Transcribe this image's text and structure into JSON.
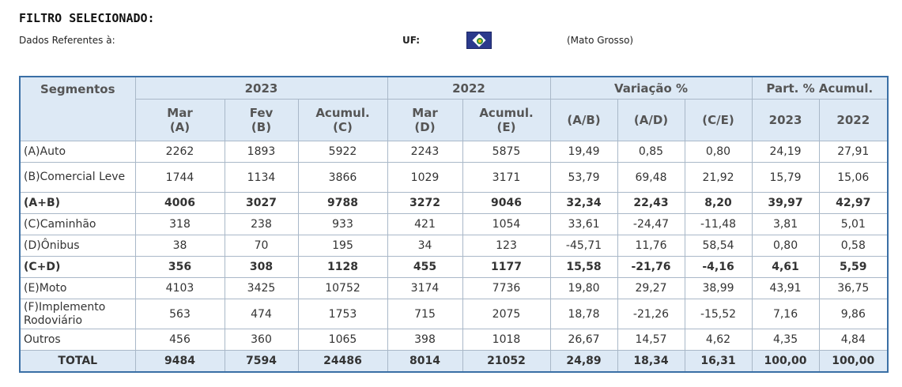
{
  "header": {
    "title": "FILTRO SELECIONADO:",
    "dados_label": "Dados Referentes à:",
    "uf_label": "UF:",
    "uf_name": "(Mato Grosso)",
    "flag_icon": "mato-grosso-flag-icon"
  },
  "table": {
    "segment_header": "Segmentos",
    "group_headers": [
      "2023",
      "2022",
      "Variação %",
      "Part. % Acumul."
    ],
    "sub_headers": [
      "Mar\n(A)",
      "Fev\n(B)",
      "Acumul.\n(C)",
      "Mar\n(D)",
      "Acumul.\n(E)",
      "(A/B)",
      "(A/D)",
      "(C/E)",
      "2023",
      "2022"
    ],
    "rows": [
      {
        "segment": "(A)Auto",
        "bold": false,
        "values": [
          "2262",
          "1893",
          "5922",
          "2243",
          "5875",
          "19,49",
          "0,85",
          "0,80",
          "24,19",
          "27,91"
        ]
      },
      {
        "segment": "(B)Comercial Leve",
        "bold": false,
        "values": [
          "1744",
          "1134",
          "3866",
          "1029",
          "3171",
          "53,79",
          "69,48",
          "21,92",
          "15,79",
          "15,06"
        ]
      },
      {
        "segment": "(A+B)",
        "bold": true,
        "values": [
          "4006",
          "3027",
          "9788",
          "3272",
          "9046",
          "32,34",
          "22,43",
          "8,20",
          "39,97",
          "42,97"
        ]
      },
      {
        "segment": "(C)Caminhão",
        "bold": false,
        "values": [
          "318",
          "238",
          "933",
          "421",
          "1054",
          "33,61",
          "-24,47",
          "-11,48",
          "3,81",
          "5,01"
        ]
      },
      {
        "segment": "(D)Ônibus",
        "bold": false,
        "values": [
          "38",
          "70",
          "195",
          "34",
          "123",
          "-45,71",
          "11,76",
          "58,54",
          "0,80",
          "0,58"
        ]
      },
      {
        "segment": "(C+D)",
        "bold": true,
        "values": [
          "356",
          "308",
          "1128",
          "455",
          "1177",
          "15,58",
          "-21,76",
          "-4,16",
          "4,61",
          "5,59"
        ]
      },
      {
        "segment": "(E)Moto",
        "bold": false,
        "values": [
          "4103",
          "3425",
          "10752",
          "3174",
          "7736",
          "19,80",
          "29,27",
          "38,99",
          "43,91",
          "36,75"
        ]
      },
      {
        "segment": "(F)Implemento Rodoviário",
        "bold": false,
        "values": [
          "563",
          "474",
          "1753",
          "715",
          "2075",
          "18,78",
          "-21,26",
          "-15,52",
          "7,16",
          "9,86"
        ]
      },
      {
        "segment": "Outros",
        "bold": false,
        "values": [
          "456",
          "360",
          "1065",
          "398",
          "1018",
          "26,67",
          "14,57",
          "4,62",
          "4,35",
          "4,84"
        ]
      }
    ],
    "total": {
      "segment": "TOTAL",
      "values": [
        "9484",
        "7594",
        "24486",
        "8014",
        "21052",
        "24,89",
        "18,34",
        "16,31",
        "100,00",
        "100,00"
      ]
    }
  }
}
